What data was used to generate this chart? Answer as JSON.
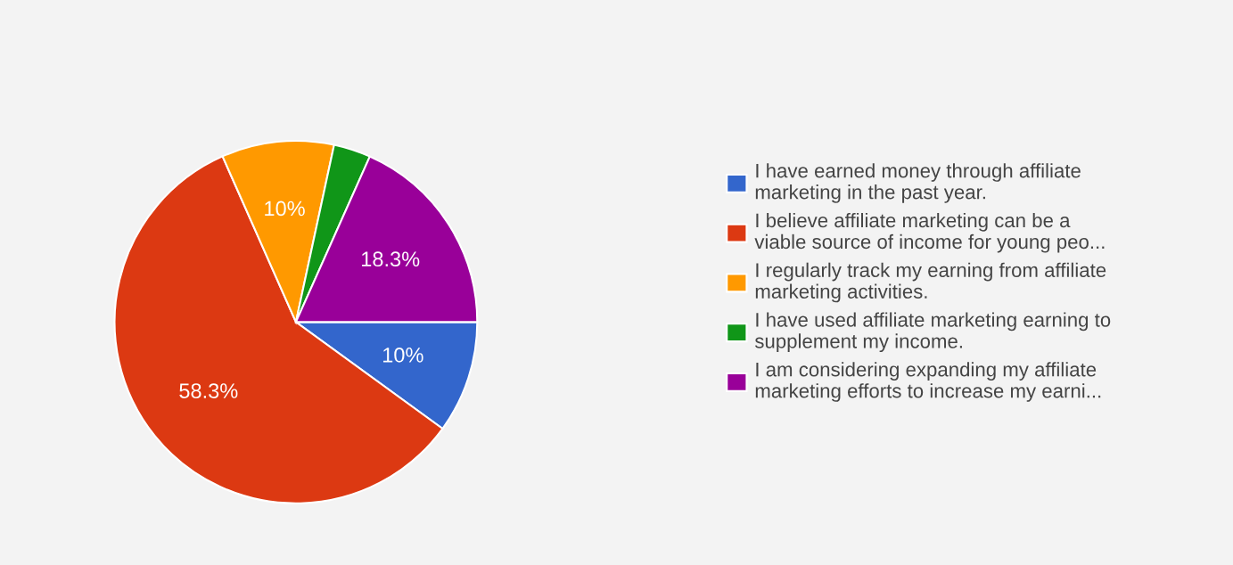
{
  "chart_data": {
    "type": "pie",
    "categories": [
      "I have earned money through affiliate\nmarketing in the past year.",
      "I believe affiliate marketing can be a\nviable source of income for young peo...",
      "I regularly track my earning from affiliate\nmarketing activities.",
      "I have used affiliate marketing earning to\nsupplement my income.",
      "I am considering expanding my affiliate\nmarketing efforts to increase my earni..."
    ],
    "values": [
      10,
      58.3,
      10,
      3.3,
      18.3
    ],
    "value_labels": [
      "10%",
      "58.3%",
      "10%",
      null,
      "18.3%"
    ],
    "colors": [
      "#3366cc",
      "#dc3912",
      "#ff9900",
      "#109618",
      "#990099"
    ],
    "legend": "right"
  }
}
